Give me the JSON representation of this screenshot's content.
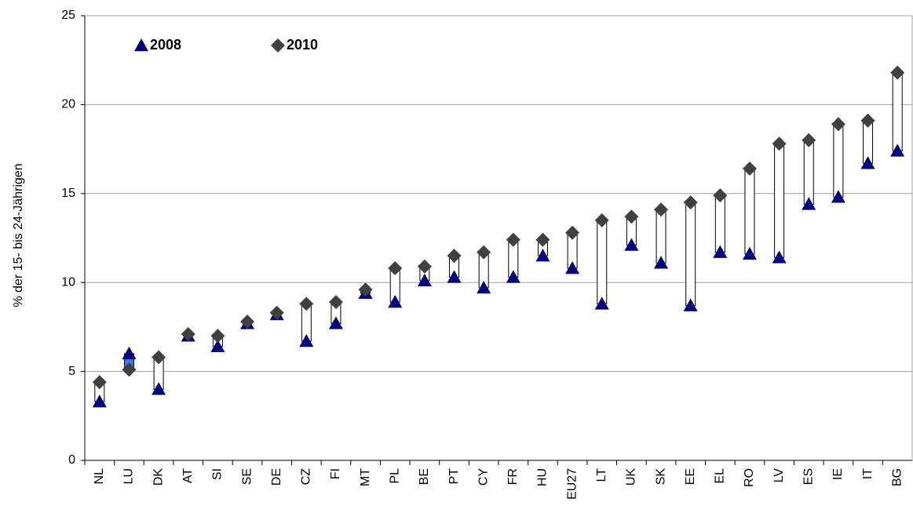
{
  "chart_data": {
    "type": "range_dot",
    "y_label": "% der 15- bis 24-Jährigen",
    "categories": [
      "NL",
      "LU",
      "DK",
      "AT",
      "SI",
      "SE",
      "DE",
      "CZ",
      "FI",
      "MT",
      "PL",
      "BE",
      "PT",
      "CY",
      "FR",
      "HU",
      "EU27",
      "LT",
      "UK",
      "SK",
      "EE",
      "EL",
      "RO",
      "LV",
      "ES",
      "IE",
      "IT",
      "BG"
    ],
    "series": [
      {
        "name": "2008",
        "color": "#00007f",
        "marker": "triangle",
        "values": [
          3.3,
          6.0,
          4.0,
          7.0,
          6.4,
          7.7,
          8.2,
          6.7,
          7.7,
          9.4,
          8.9,
          10.1,
          10.3,
          9.7,
          10.3,
          11.5,
          10.8,
          8.8,
          12.1,
          11.1,
          8.7,
          11.7,
          11.6,
          11.4,
          14.4,
          14.8,
          16.7,
          17.4
        ]
      },
      {
        "name": "2010",
        "color": "#404040",
        "marker": "diamond",
        "values": [
          4.4,
          5.1,
          5.8,
          7.1,
          7.0,
          7.8,
          8.3,
          8.8,
          8.9,
          9.6,
          10.8,
          10.9,
          11.5,
          11.7,
          12.4,
          12.4,
          12.8,
          13.5,
          13.7,
          14.1,
          14.5,
          14.9,
          16.4,
          17.8,
          18.0,
          18.9,
          19.1,
          21.8
        ]
      }
    ],
    "range_color": "#ffffff",
    "decrease_color": "#3c78e0",
    "ylim": [
      0,
      25
    ],
    "yticks": [
      0,
      5,
      10,
      15,
      20,
      25
    ],
    "grid": true,
    "legend": "top-left"
  }
}
